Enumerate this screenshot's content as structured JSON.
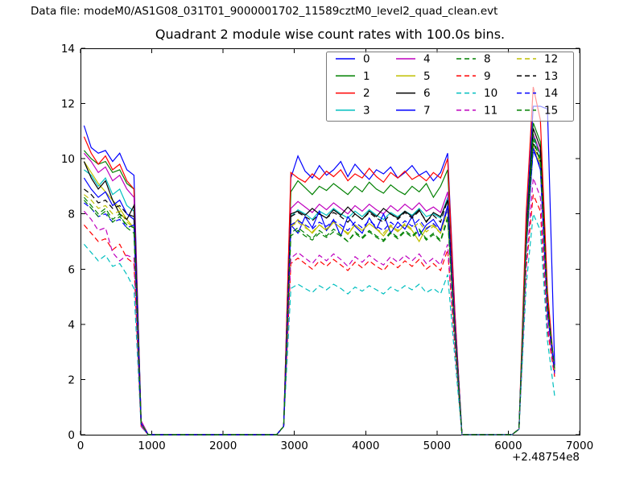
{
  "header": {
    "data_file": "Data file: modeM0/AS1G08_031T01_9000001702_11589cztM0_level2_quad_clean.evt"
  },
  "chart_data": {
    "type": "line",
    "title": "Quadrant 2 module wise count rates with 100.0s bins.",
    "xlabel": "",
    "ylabel": "",
    "x_offset_label": "+2.48754e8",
    "xlim": [
      0,
      7000
    ],
    "ylim": [
      0,
      14
    ],
    "xticks": [
      0,
      1000,
      2000,
      3000,
      4000,
      5000,
      6000,
      7000
    ],
    "yticks": [
      0,
      2,
      4,
      6,
      8,
      10,
      12,
      14
    ],
    "grid": false,
    "legend": {
      "position": "upper right",
      "columns": 4,
      "frame_opacity": 0.6
    },
    "x": [
      50,
      150,
      250,
      350,
      450,
      550,
      650,
      750,
      850,
      950,
      1050,
      1150,
      1250,
      1350,
      1450,
      1550,
      1650,
      1750,
      1850,
      1950,
      2050,
      2150,
      2250,
      2350,
      2450,
      2550,
      2650,
      2750,
      2850,
      2950,
      3050,
      3150,
      3250,
      3350,
      3450,
      3550,
      3650,
      3750,
      3850,
      3950,
      4050,
      4150,
      4250,
      4350,
      4450,
      4550,
      4650,
      4750,
      4850,
      4950,
      5050,
      5150,
      5250,
      5350,
      5450,
      5550,
      5650,
      5750,
      5850,
      5950,
      6050,
      6150,
      6250,
      6350,
      6450,
      6550,
      6650
    ],
    "series": [
      {
        "name": "0",
        "color": "#0000ff",
        "dashed": false,
        "values": [
          11.2,
          10.4,
          10.2,
          10.3,
          9.9,
          10.2,
          9.6,
          9.4,
          0.5,
          0,
          0,
          0,
          0,
          0,
          0,
          0,
          0,
          0,
          0,
          0,
          0,
          0,
          0,
          0,
          0,
          0,
          0,
          0,
          0.3,
          9.3,
          10.1,
          9.55,
          9.3,
          9.75,
          9.4,
          9.6,
          9.9,
          9.35,
          9.8,
          9.5,
          9.25,
          9.6,
          9.45,
          9.7,
          9.3,
          9.5,
          9.75,
          9.4,
          9.55,
          9.2,
          9.5,
          10.2,
          4.5,
          0,
          0,
          0,
          0,
          0,
          0,
          0,
          0,
          0.2,
          7.5,
          11.9,
          11.9,
          11.8,
          2.5
        ]
      },
      {
        "name": "1",
        "color": "#008000",
        "dashed": false,
        "values": [
          10.3,
          10.0,
          9.8,
          9.9,
          9.5,
          9.6,
          9.1,
          8.9,
          0.5,
          0,
          0,
          0,
          0,
          0,
          0,
          0,
          0,
          0,
          0,
          0,
          0,
          0,
          0,
          0,
          0,
          0,
          0,
          0,
          0.3,
          8.8,
          9.2,
          8.95,
          8.7,
          9.0,
          8.85,
          9.1,
          8.9,
          8.7,
          9.0,
          8.8,
          9.15,
          8.9,
          8.75,
          9.05,
          8.85,
          8.7,
          9.0,
          8.8,
          9.1,
          8.6,
          9.0,
          9.6,
          4.3,
          0,
          0,
          0,
          0,
          0,
          0,
          0,
          0,
          0.2,
          7.2,
          11.3,
          10.6,
          4.8,
          2.3
        ]
      },
      {
        "name": "2",
        "color": "#ff0000",
        "dashed": false,
        "values": [
          10.8,
          10.2,
          9.8,
          10.1,
          9.6,
          9.8,
          9.2,
          8.9,
          0.5,
          0,
          0,
          0,
          0,
          0,
          0,
          0,
          0,
          0,
          0,
          0,
          0,
          0,
          0,
          0,
          0,
          0,
          0,
          0,
          0.3,
          9.5,
          9.3,
          9.15,
          9.45,
          9.25,
          9.55,
          9.35,
          9.6,
          9.2,
          9.45,
          9.3,
          9.65,
          9.35,
          9.15,
          9.5,
          9.3,
          9.55,
          9.25,
          9.4,
          9.2,
          9.5,
          9.3,
          10.0,
          4.4,
          0,
          0,
          0,
          0,
          0,
          0,
          0,
          0,
          0.2,
          8.0,
          12.6,
          11.4,
          5.2,
          2.2
        ]
      },
      {
        "name": "3",
        "color": "#00bfbf",
        "dashed": false,
        "values": [
          9.6,
          9.4,
          9.0,
          9.3,
          8.7,
          8.9,
          8.3,
          8.1,
          0.4,
          0,
          0,
          0,
          0,
          0,
          0,
          0,
          0,
          0,
          0,
          0,
          0,
          0,
          0,
          0,
          0,
          0,
          0,
          0,
          0.3,
          7.9,
          8.15,
          8.0,
          7.8,
          8.1,
          7.95,
          8.2,
          8.0,
          7.85,
          8.1,
          7.9,
          8.15,
          7.95,
          7.8,
          8.05,
          7.9,
          8.1,
          7.95,
          8.2,
          7.9,
          8.0,
          7.85,
          8.6,
          4.0,
          0,
          0,
          0,
          0,
          0,
          0,
          0,
          0,
          0.2,
          7.0,
          10.8,
          10.1,
          4.6,
          2.3
        ]
      },
      {
        "name": "4",
        "color": "#bf00bf",
        "dashed": false,
        "values": [
          10.2,
          9.9,
          9.5,
          9.7,
          9.2,
          9.4,
          8.9,
          8.6,
          0.5,
          0,
          0,
          0,
          0,
          0,
          0,
          0,
          0,
          0,
          0,
          0,
          0,
          0,
          0,
          0,
          0,
          0,
          0,
          0,
          0.3,
          8.2,
          8.45,
          8.25,
          8.05,
          8.35,
          8.15,
          8.4,
          8.2,
          8.0,
          8.3,
          8.1,
          8.35,
          8.15,
          8.0,
          8.3,
          8.1,
          8.35,
          8.15,
          8.4,
          8.1,
          8.25,
          8.05,
          8.8,
          4.1,
          0,
          0,
          0,
          0,
          0,
          0,
          0,
          0,
          0.2,
          7.1,
          10.9,
          10.2,
          4.7,
          2.4
        ]
      },
      {
        "name": "5",
        "color": "#bfbf00",
        "dashed": false,
        "values": [
          9.9,
          9.5,
          9.1,
          8.8,
          8.5,
          8.2,
          7.8,
          7.5,
          0.4,
          0,
          0,
          0,
          0,
          0,
          0,
          0,
          0,
          0,
          0,
          0,
          0,
          0,
          0,
          0,
          0,
          0,
          0,
          0,
          0.3,
          7.5,
          7.8,
          7.55,
          7.3,
          7.6,
          7.4,
          7.7,
          7.5,
          7.25,
          7.6,
          7.4,
          7.65,
          7.45,
          7.2,
          7.55,
          7.35,
          7.6,
          7.4,
          7.0,
          7.5,
          7.6,
          7.3,
          8.2,
          3.8,
          0,
          0,
          0,
          0,
          0,
          0,
          0,
          0,
          0.2,
          6.8,
          10.4,
          9.7,
          4.4,
          2.2
        ]
      },
      {
        "name": "6",
        "color": "#000000",
        "dashed": false,
        "values": [
          9.9,
          9.3,
          8.9,
          9.2,
          8.5,
          8.0,
          7.8,
          8.3,
          0.4,
          0,
          0,
          0,
          0,
          0,
          0,
          0,
          0,
          0,
          0,
          0,
          0,
          0,
          0,
          0,
          0,
          0,
          0,
          0,
          0.3,
          8.0,
          8.1,
          7.95,
          8.2,
          8.0,
          7.85,
          8.15,
          7.95,
          8.25,
          8.0,
          7.8,
          8.1,
          7.9,
          8.2,
          8.0,
          7.85,
          8.1,
          7.9,
          8.15,
          7.7,
          8.05,
          7.9,
          8.5,
          3.9,
          0,
          0,
          0,
          0,
          0,
          0,
          0,
          0,
          0.2,
          7.0,
          11.1,
          10.4,
          4.7,
          2.3
        ]
      },
      {
        "name": "7",
        "color": "#0000ff",
        "dashed": false,
        "values": [
          9.3,
          8.9,
          8.6,
          8.8,
          8.3,
          8.5,
          8.0,
          7.8,
          0.4,
          0,
          0,
          0,
          0,
          0,
          0,
          0,
          0,
          0,
          0,
          0,
          0,
          0,
          0,
          0,
          0,
          0,
          0,
          0,
          0.3,
          7.6,
          7.3,
          7.9,
          7.5,
          8.1,
          7.4,
          7.8,
          7.2,
          7.9,
          7.55,
          7.3,
          7.85,
          7.45,
          8.0,
          7.3,
          7.7,
          7.45,
          7.9,
          7.2,
          7.6,
          7.8,
          7.4,
          8.3,
          3.8,
          0,
          0,
          0,
          0,
          0,
          0,
          0,
          0,
          0.2,
          6.7,
          10.4,
          9.6,
          4.4,
          2.2
        ]
      },
      {
        "name": "8",
        "color": "#008000",
        "dashed": true,
        "values": [
          8.6,
          8.3,
          8.0,
          8.2,
          7.8,
          8.0,
          7.5,
          7.3,
          0.4,
          0,
          0,
          0,
          0,
          0,
          0,
          0,
          0,
          0,
          0,
          0,
          0,
          0,
          0,
          0,
          0,
          0,
          0,
          0,
          0.3,
          7.3,
          7.5,
          7.3,
          7.1,
          7.4,
          7.2,
          7.45,
          7.25,
          7.0,
          7.35,
          7.15,
          7.4,
          7.2,
          7.05,
          7.35,
          7.15,
          7.4,
          7.2,
          7.45,
          7.1,
          7.3,
          7.05,
          7.9,
          3.7,
          0,
          0,
          0,
          0,
          0,
          0,
          0,
          0,
          0.2,
          6.9,
          10.9,
          10.0,
          4.6,
          2.3
        ]
      },
      {
        "name": "9",
        "color": "#ff0000",
        "dashed": true,
        "values": [
          7.6,
          7.3,
          7.0,
          7.1,
          6.7,
          6.9,
          6.4,
          6.2,
          0.3,
          0,
          0,
          0,
          0,
          0,
          0,
          0,
          0,
          0,
          0,
          0,
          0,
          0,
          0,
          0,
          0,
          0,
          0,
          0,
          0.3,
          6.2,
          6.4,
          6.2,
          6.0,
          6.3,
          6.1,
          6.35,
          6.15,
          5.95,
          6.25,
          6.05,
          6.3,
          6.1,
          5.95,
          6.25,
          6.05,
          6.3,
          6.1,
          6.35,
          6.0,
          6.2,
          5.95,
          6.7,
          3.2,
          0,
          0,
          0,
          0,
          0,
          0,
          0,
          0,
          0.2,
          6.0,
          8.7,
          8.1,
          3.8,
          2.1
        ]
      },
      {
        "name": "10",
        "color": "#00bfbf",
        "dashed": true,
        "values": [
          6.9,
          6.6,
          6.3,
          6.5,
          6.1,
          6.2,
          5.8,
          5.3,
          0.3,
          0,
          0,
          0,
          0,
          0,
          0,
          0,
          0,
          0,
          0,
          0,
          0,
          0,
          0,
          0,
          0,
          0,
          0,
          0,
          0.3,
          5.3,
          5.45,
          5.3,
          5.15,
          5.4,
          5.25,
          5.45,
          5.3,
          5.1,
          5.35,
          5.2,
          5.4,
          5.25,
          5.1,
          5.35,
          5.2,
          5.4,
          5.25,
          5.45,
          5.15,
          5.3,
          5.1,
          5.8,
          2.8,
          0,
          0,
          0,
          0,
          0,
          0,
          0,
          0,
          0.2,
          5.4,
          8.0,
          7.4,
          3.4,
          1.4
        ]
      },
      {
        "name": "11",
        "color": "#bf00bf",
        "dashed": true,
        "values": [
          8.1,
          7.8,
          7.4,
          7.5,
          6.6,
          6.3,
          6.5,
          6.4,
          0.3,
          0,
          0,
          0,
          0,
          0,
          0,
          0,
          0,
          0,
          0,
          0,
          0,
          0,
          0,
          0,
          0,
          0,
          0,
          0,
          0.3,
          6.4,
          6.6,
          6.4,
          6.2,
          6.5,
          6.3,
          6.55,
          6.35,
          6.1,
          6.45,
          6.25,
          6.5,
          6.3,
          6.15,
          6.45,
          6.25,
          6.5,
          6.3,
          6.55,
          6.2,
          6.4,
          6.15,
          6.9,
          3.3,
          0,
          0,
          0,
          0,
          0,
          0,
          0,
          0,
          0.2,
          6.1,
          9.3,
          8.6,
          4.0,
          2.2
        ]
      },
      {
        "name": "12",
        "color": "#bfbf00",
        "dashed": true,
        "values": [
          8.7,
          8.5,
          8.2,
          8.3,
          8.0,
          8.1,
          7.7,
          7.5,
          0.4,
          0,
          0,
          0,
          0,
          0,
          0,
          0,
          0,
          0,
          0,
          0,
          0,
          0,
          0,
          0,
          0,
          0,
          0,
          0,
          0.3,
          7.55,
          7.7,
          7.5,
          7.35,
          7.6,
          7.45,
          7.7,
          7.5,
          7.3,
          7.6,
          7.4,
          7.65,
          7.45,
          7.3,
          7.6,
          7.4,
          7.65,
          7.45,
          7.7,
          7.35,
          7.55,
          7.3,
          8.1,
          3.8,
          0,
          0,
          0,
          0,
          0,
          0,
          0,
          0,
          0.2,
          6.8,
          10.5,
          9.8,
          4.5,
          2.3
        ]
      },
      {
        "name": "13",
        "color": "#000000",
        "dashed": true,
        "values": [
          8.9,
          8.7,
          8.4,
          8.5,
          8.2,
          8.3,
          8.0,
          7.9,
          0.4,
          0,
          0,
          0,
          0,
          0,
          0,
          0,
          0,
          0,
          0,
          0,
          0,
          0,
          0,
          0,
          0,
          0,
          0,
          0,
          0.3,
          7.9,
          8.05,
          7.9,
          7.75,
          8.0,
          7.85,
          8.05,
          7.9,
          7.7,
          8.0,
          7.8,
          8.05,
          7.85,
          7.7,
          8.0,
          7.8,
          8.05,
          7.85,
          8.1,
          7.75,
          7.95,
          7.7,
          8.5,
          3.9,
          0,
          0,
          0,
          0,
          0,
          0,
          0,
          0,
          0.2,
          7.0,
          10.6,
          9.9,
          4.6,
          2.3
        ]
      },
      {
        "name": "14",
        "color": "#0000ff",
        "dashed": true,
        "values": [
          8.4,
          8.2,
          7.9,
          8.0,
          7.7,
          7.8,
          7.5,
          7.6,
          0.4,
          0,
          0,
          0,
          0,
          0,
          0,
          0,
          0,
          0,
          0,
          0,
          0,
          0,
          0,
          0,
          0,
          0,
          0,
          0,
          0.3,
          7.6,
          7.75,
          7.6,
          7.45,
          7.7,
          7.55,
          7.75,
          7.6,
          7.4,
          7.7,
          7.5,
          7.75,
          7.55,
          7.4,
          7.7,
          7.5,
          7.75,
          7.55,
          7.8,
          7.45,
          7.65,
          7.4,
          8.2,
          3.8,
          0,
          0,
          0,
          0,
          0,
          0,
          0,
          0,
          0.2,
          6.9,
          10.3,
          9.7,
          4.5,
          2.3
        ]
      },
      {
        "name": "15",
        "color": "#008000",
        "dashed": true,
        "values": [
          8.5,
          8.2,
          7.9,
          8.1,
          7.7,
          7.9,
          7.6,
          7.5,
          0.4,
          0,
          0,
          0,
          0,
          0,
          0,
          0,
          0,
          0,
          0,
          0,
          0,
          0,
          0,
          0,
          0,
          0,
          0,
          0,
          0.3,
          7.2,
          7.4,
          7.2,
          7.05,
          7.3,
          7.15,
          7.35,
          7.2,
          7.0,
          7.3,
          7.1,
          7.35,
          7.15,
          7.0,
          7.3,
          7.1,
          7.35,
          7.15,
          7.4,
          7.05,
          7.25,
          7.0,
          7.8,
          3.6,
          0,
          0,
          0,
          0,
          0,
          0,
          0,
          0,
          0.2,
          6.9,
          10.7,
          9.9,
          4.6,
          2.4
        ]
      }
    ]
  }
}
